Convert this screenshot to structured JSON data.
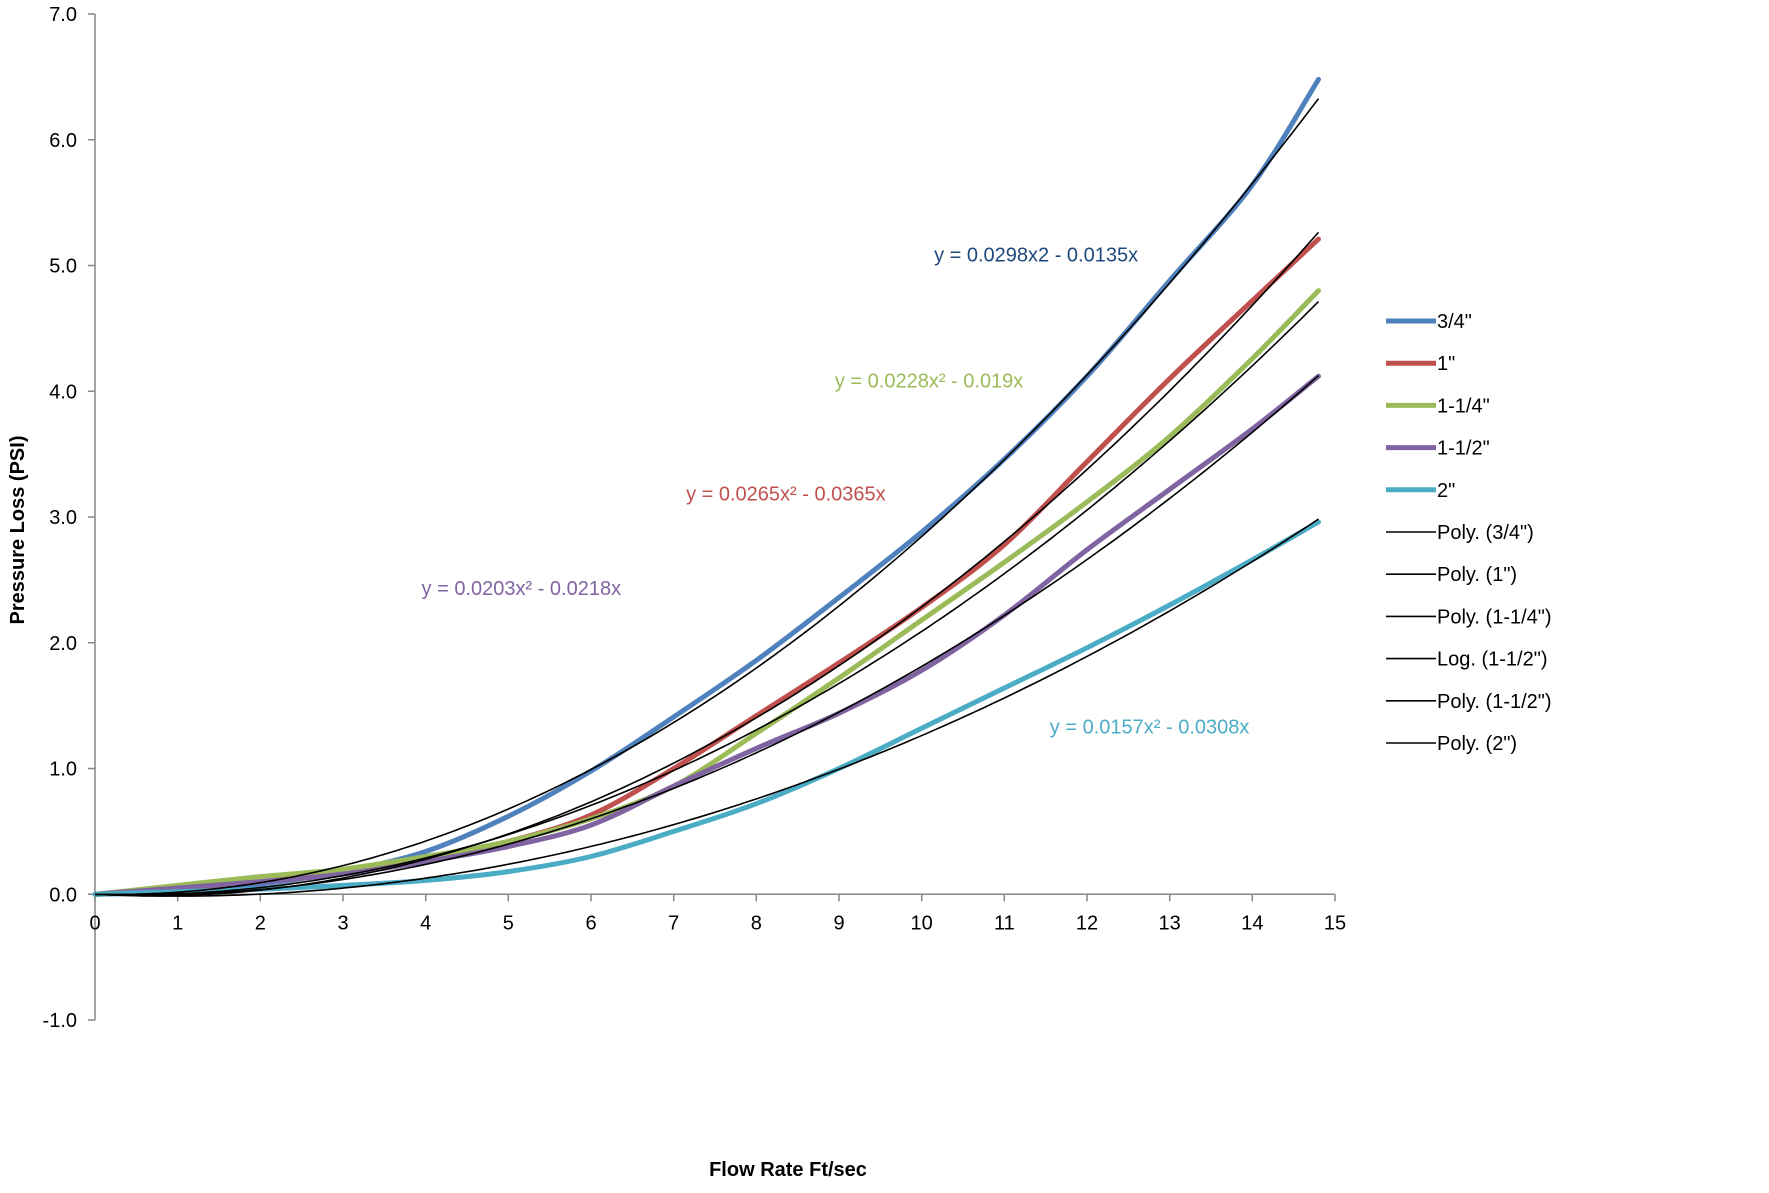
{
  "chart_data": {
    "type": "line",
    "title": "",
    "xlabel": "Flow Rate Ft/sec",
    "ylabel": "Pressure Loss (PSI)",
    "xlim": [
      0,
      15
    ],
    "ylim": [
      -1.0,
      7.0
    ],
    "x_ticks": [
      "0",
      "1",
      "2",
      "3",
      "4",
      "5",
      "6",
      "7",
      "8",
      "9",
      "10",
      "11",
      "12",
      "13",
      "14",
      "15"
    ],
    "y_ticks": [
      "-1.0",
      "0.0",
      "1.0",
      "2.0",
      "3.0",
      "4.0",
      "5.0",
      "6.0",
      "7.0"
    ],
    "grid": false,
    "legend_position": "right",
    "series": [
      {
        "name": "3/4\"",
        "color": "#4F81BD",
        "x": [
          0,
          1,
          2,
          3,
          4,
          5,
          6,
          7,
          8,
          9,
          10,
          11,
          12,
          13,
          14,
          14.8
        ],
        "y": [
          0,
          0.02,
          0.08,
          0.18,
          0.34,
          0.62,
          0.98,
          1.41,
          1.86,
          2.36,
          2.88,
          3.46,
          4.12,
          4.88,
          5.64,
          6.48
        ]
      },
      {
        "name": "1\"",
        "color": "#C0504D",
        "x": [
          0,
          1,
          2,
          3,
          4,
          5,
          6,
          7,
          8,
          9,
          10,
          11,
          12,
          13,
          14,
          14.8
        ],
        "y": [
          0,
          0.04,
          0.1,
          0.18,
          0.28,
          0.42,
          0.63,
          1.0,
          1.42,
          1.84,
          2.28,
          2.78,
          3.44,
          4.1,
          4.72,
          5.21
        ]
      },
      {
        "name": "1-1/4\"",
        "color": "#9BBB59",
        "x": [
          0,
          1,
          2,
          3,
          4,
          5,
          6,
          7,
          8,
          9,
          10,
          11,
          12,
          13,
          14,
          14.8
        ],
        "y": [
          0,
          0.07,
          0.14,
          0.2,
          0.3,
          0.42,
          0.6,
          0.86,
          1.28,
          1.72,
          2.18,
          2.64,
          3.12,
          3.64,
          4.26,
          4.8
        ]
      },
      {
        "name": "1-1/2\"",
        "color": "#8064A2",
        "x": [
          0,
          1,
          2,
          3,
          4,
          5,
          6,
          7,
          8,
          9,
          10,
          11,
          12,
          13,
          14,
          14.8
        ],
        "y": [
          0,
          0.05,
          0.1,
          0.16,
          0.26,
          0.38,
          0.55,
          0.86,
          1.16,
          1.44,
          1.78,
          2.22,
          2.74,
          3.22,
          3.7,
          4.12
        ]
      },
      {
        "name": "2\"",
        "color": "#4BACC6",
        "x": [
          0,
          1,
          2,
          3,
          4,
          5,
          6,
          7,
          8,
          9,
          10,
          11,
          12,
          13,
          14,
          14.8
        ],
        "y": [
          0,
          0.02,
          0.04,
          0.07,
          0.11,
          0.18,
          0.3,
          0.5,
          0.72,
          1.0,
          1.32,
          1.64,
          1.96,
          2.3,
          2.66,
          2.96
        ]
      }
    ],
    "trendlines": [
      {
        "name": "Poly. (3/4\")",
        "type": "poly",
        "a": 0.0298,
        "b": -0.0135
      },
      {
        "name": "Poly. (1\")",
        "type": "poly",
        "a": 0.0265,
        "b": -0.0365
      },
      {
        "name": "Poly. (1-1/4\")",
        "type": "poly",
        "a": 0.0228,
        "b": -0.019
      },
      {
        "name": "Log. (1-1/2\")",
        "type": "log"
      },
      {
        "name": "Poly. (1-1/2\")",
        "type": "poly",
        "a": 0.0203,
        "b": -0.0218
      },
      {
        "name": "Poly. (2\")",
        "type": "poly",
        "a": 0.0157,
        "b": -0.0308
      }
    ],
    "trendline_color": "#000000",
    "annotations": [
      {
        "text": "y = 0.0298x2 - 0.0135x",
        "color": "#1F497D",
        "x": 10.15,
        "y": 5.03
      },
      {
        "text": "y = 0.0228x² - 0.019x",
        "color": "#9BBB59",
        "x": 8.95,
        "y": 4.03
      },
      {
        "text": "y = 0.0265x² - 0.0365x",
        "color": "#C0504D",
        "x": 7.15,
        "y": 3.13
      },
      {
        "text": "y = 0.0203x² - 0.0218x",
        "color": "#8064A2",
        "x": 3.95,
        "y": 2.38
      },
      {
        "text": "y = 0.0157x² - 0.0308x",
        "color": "#4BACC6",
        "x": 11.55,
        "y": 1.28
      }
    ]
  }
}
